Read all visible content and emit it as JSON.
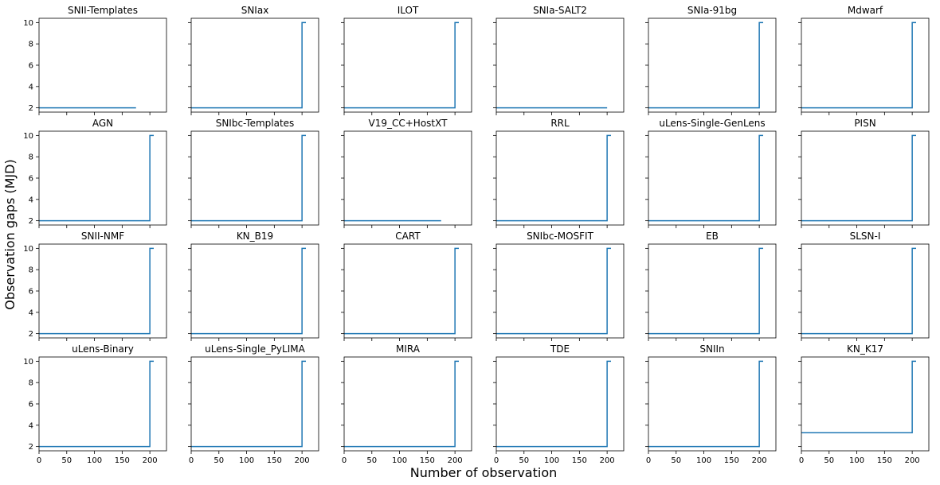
{
  "figure": {
    "xlabel": "Number of observation",
    "ylabel": "Observation gaps (MJD)",
    "line_color": "#1f77b4"
  },
  "chart_data": [
    {
      "type": "line",
      "title": "SNII-Templates",
      "x": [
        0,
        175
      ],
      "y": [
        2,
        2
      ],
      "xlim": [
        0,
        230
      ],
      "ylim": [
        1.6,
        10.4
      ],
      "xticks": [
        0,
        50,
        100,
        150,
        200
      ],
      "yticks": [
        2,
        4,
        6,
        8,
        10
      ],
      "grid": false
    },
    {
      "type": "line",
      "title": "SNIax",
      "x": [
        0,
        200,
        200,
        207
      ],
      "y": [
        2,
        2,
        10,
        10
      ],
      "xlim": [
        0,
        230
      ],
      "ylim": [
        1.6,
        10.4
      ],
      "xticks": [
        0,
        50,
        100,
        150,
        200
      ],
      "yticks": [
        2,
        4,
        6,
        8,
        10
      ],
      "grid": false
    },
    {
      "type": "line",
      "title": "ILOT",
      "x": [
        0,
        200,
        200,
        207
      ],
      "y": [
        2,
        2,
        10,
        10
      ],
      "xlim": [
        0,
        230
      ],
      "ylim": [
        1.6,
        10.4
      ],
      "xticks": [
        0,
        50,
        100,
        150,
        200
      ],
      "yticks": [
        2,
        4,
        6,
        8,
        10
      ],
      "grid": false
    },
    {
      "type": "line",
      "title": "SNIa-SALT2",
      "x": [
        0,
        200
      ],
      "y": [
        2,
        2
      ],
      "xlim": [
        0,
        230
      ],
      "ylim": [
        1.6,
        10.4
      ],
      "xticks": [
        0,
        50,
        100,
        150,
        200
      ],
      "yticks": [
        2,
        4,
        6,
        8,
        10
      ],
      "grid": false
    },
    {
      "type": "line",
      "title": "SNIa-91bg",
      "x": [
        0,
        200,
        200,
        207
      ],
      "y": [
        2,
        2,
        10,
        10
      ],
      "xlim": [
        0,
        230
      ],
      "ylim": [
        1.6,
        10.4
      ],
      "xticks": [
        0,
        50,
        100,
        150,
        200
      ],
      "yticks": [
        2,
        4,
        6,
        8,
        10
      ],
      "grid": false
    },
    {
      "type": "line",
      "title": "Mdwarf",
      "x": [
        0,
        200,
        200,
        207
      ],
      "y": [
        2,
        2,
        10,
        10
      ],
      "xlim": [
        0,
        230
      ],
      "ylim": [
        1.6,
        10.4
      ],
      "xticks": [
        0,
        50,
        100,
        150,
        200
      ],
      "yticks": [
        2,
        4,
        6,
        8,
        10
      ],
      "grid": false
    },
    {
      "type": "line",
      "title": "AGN",
      "x": [
        0,
        200,
        200,
        207
      ],
      "y": [
        2,
        2,
        10,
        10
      ],
      "xlim": [
        0,
        230
      ],
      "ylim": [
        1.6,
        10.4
      ],
      "xticks": [
        0,
        50,
        100,
        150,
        200
      ],
      "yticks": [
        2,
        4,
        6,
        8,
        10
      ],
      "grid": false
    },
    {
      "type": "line",
      "title": "SNIbc-Templates",
      "x": [
        0,
        200,
        200,
        207
      ],
      "y": [
        2,
        2,
        10,
        10
      ],
      "xlim": [
        0,
        230
      ],
      "ylim": [
        1.6,
        10.4
      ],
      "xticks": [
        0,
        50,
        100,
        150,
        200
      ],
      "yticks": [
        2,
        4,
        6,
        8,
        10
      ],
      "grid": false
    },
    {
      "type": "line",
      "title": "V19_CC+HostXT",
      "x": [
        0,
        175
      ],
      "y": [
        2,
        2
      ],
      "xlim": [
        0,
        230
      ],
      "ylim": [
        1.6,
        10.4
      ],
      "xticks": [
        0,
        50,
        100,
        150,
        200
      ],
      "yticks": [
        2,
        4,
        6,
        8,
        10
      ],
      "grid": false
    },
    {
      "type": "line",
      "title": "RRL",
      "x": [
        0,
        200,
        200,
        207
      ],
      "y": [
        2,
        2,
        10,
        10
      ],
      "xlim": [
        0,
        230
      ],
      "ylim": [
        1.6,
        10.4
      ],
      "xticks": [
        0,
        50,
        100,
        150,
        200
      ],
      "yticks": [
        2,
        4,
        6,
        8,
        10
      ],
      "grid": false
    },
    {
      "type": "line",
      "title": "uLens-Single-GenLens",
      "x": [
        0,
        200,
        200,
        207
      ],
      "y": [
        2,
        2,
        10,
        10
      ],
      "xlim": [
        0,
        230
      ],
      "ylim": [
        1.6,
        10.4
      ],
      "xticks": [
        0,
        50,
        100,
        150,
        200
      ],
      "yticks": [
        2,
        4,
        6,
        8,
        10
      ],
      "grid": false
    },
    {
      "type": "line",
      "title": "PISN",
      "x": [
        0,
        200,
        200,
        207
      ],
      "y": [
        2,
        2,
        10,
        10
      ],
      "xlim": [
        0,
        230
      ],
      "ylim": [
        1.6,
        10.4
      ],
      "xticks": [
        0,
        50,
        100,
        150,
        200
      ],
      "yticks": [
        2,
        4,
        6,
        8,
        10
      ],
      "grid": false
    },
    {
      "type": "line",
      "title": "SNII-NMF",
      "x": [
        0,
        200,
        200,
        207
      ],
      "y": [
        2,
        2,
        10,
        10
      ],
      "xlim": [
        0,
        230
      ],
      "ylim": [
        1.6,
        10.4
      ],
      "xticks": [
        0,
        50,
        100,
        150,
        200
      ],
      "yticks": [
        2,
        4,
        6,
        8,
        10
      ],
      "grid": false
    },
    {
      "type": "line",
      "title": "KN_B19",
      "x": [
        0,
        200,
        200,
        207
      ],
      "y": [
        2,
        2,
        10,
        10
      ],
      "xlim": [
        0,
        230
      ],
      "ylim": [
        1.6,
        10.4
      ],
      "xticks": [
        0,
        50,
        100,
        150,
        200
      ],
      "yticks": [
        2,
        4,
        6,
        8,
        10
      ],
      "grid": false
    },
    {
      "type": "line",
      "title": "CART",
      "x": [
        0,
        200,
        200,
        207
      ],
      "y": [
        2,
        2,
        10,
        10
      ],
      "xlim": [
        0,
        230
      ],
      "ylim": [
        1.6,
        10.4
      ],
      "xticks": [
        0,
        50,
        100,
        150,
        200
      ],
      "yticks": [
        2,
        4,
        6,
        8,
        10
      ],
      "grid": false
    },
    {
      "type": "line",
      "title": "SNIbc-MOSFIT",
      "x": [
        0,
        200,
        200,
        207
      ],
      "y": [
        2,
        2,
        10,
        10
      ],
      "xlim": [
        0,
        230
      ],
      "ylim": [
        1.6,
        10.4
      ],
      "xticks": [
        0,
        50,
        100,
        150,
        200
      ],
      "yticks": [
        2,
        4,
        6,
        8,
        10
      ],
      "grid": false
    },
    {
      "type": "line",
      "title": "EB",
      "x": [
        0,
        200,
        200,
        207
      ],
      "y": [
        2,
        2,
        10,
        10
      ],
      "xlim": [
        0,
        230
      ],
      "ylim": [
        1.6,
        10.4
      ],
      "xticks": [
        0,
        50,
        100,
        150,
        200
      ],
      "yticks": [
        2,
        4,
        6,
        8,
        10
      ],
      "grid": false
    },
    {
      "type": "line",
      "title": "SLSN-I",
      "x": [
        0,
        200,
        200,
        207
      ],
      "y": [
        2,
        2,
        10,
        10
      ],
      "xlim": [
        0,
        230
      ],
      "ylim": [
        1.6,
        10.4
      ],
      "xticks": [
        0,
        50,
        100,
        150,
        200
      ],
      "yticks": [
        2,
        4,
        6,
        8,
        10
      ],
      "grid": false
    },
    {
      "type": "line",
      "title": "uLens-Binary",
      "x": [
        0,
        200,
        200,
        207
      ],
      "y": [
        2,
        2,
        10,
        10
      ],
      "xlim": [
        0,
        230
      ],
      "ylim": [
        1.6,
        10.4
      ],
      "xticks": [
        0,
        50,
        100,
        150,
        200
      ],
      "yticks": [
        2,
        4,
        6,
        8,
        10
      ],
      "grid": false
    },
    {
      "type": "line",
      "title": "uLens-Single_PyLIMA",
      "x": [
        0,
        200,
        200,
        207
      ],
      "y": [
        2,
        2,
        10,
        10
      ],
      "xlim": [
        0,
        230
      ],
      "ylim": [
        1.6,
        10.4
      ],
      "xticks": [
        0,
        50,
        100,
        150,
        200
      ],
      "yticks": [
        2,
        4,
        6,
        8,
        10
      ],
      "grid": false
    },
    {
      "type": "line",
      "title": "MIRA",
      "x": [
        0,
        200,
        200,
        207
      ],
      "y": [
        2,
        2,
        10,
        10
      ],
      "xlim": [
        0,
        230
      ],
      "ylim": [
        1.6,
        10.4
      ],
      "xticks": [
        0,
        50,
        100,
        150,
        200
      ],
      "yticks": [
        2,
        4,
        6,
        8,
        10
      ],
      "grid": false
    },
    {
      "type": "line",
      "title": "TDE",
      "x": [
        0,
        200,
        200,
        207
      ],
      "y": [
        2,
        2,
        10,
        10
      ],
      "xlim": [
        0,
        230
      ],
      "ylim": [
        1.6,
        10.4
      ],
      "xticks": [
        0,
        50,
        100,
        150,
        200
      ],
      "yticks": [
        2,
        4,
        6,
        8,
        10
      ],
      "grid": false
    },
    {
      "type": "line",
      "title": "SNIIn",
      "x": [
        0,
        200,
        200,
        207
      ],
      "y": [
        2,
        2,
        10,
        10
      ],
      "xlim": [
        0,
        230
      ],
      "ylim": [
        1.6,
        10.4
      ],
      "xticks": [
        0,
        50,
        100,
        150,
        200
      ],
      "yticks": [
        2,
        4,
        6,
        8,
        10
      ],
      "grid": false
    },
    {
      "type": "line",
      "title": "KN_K17",
      "x": [
        0,
        200,
        200,
        207
      ],
      "y": [
        3.3,
        3.3,
        10,
        10
      ],
      "xlim": [
        0,
        230
      ],
      "ylim": [
        1.6,
        10.4
      ],
      "xticks": [
        0,
        50,
        100,
        150,
        200
      ],
      "yticks": [
        2,
        4,
        6,
        8,
        10
      ],
      "grid": false
    }
  ]
}
